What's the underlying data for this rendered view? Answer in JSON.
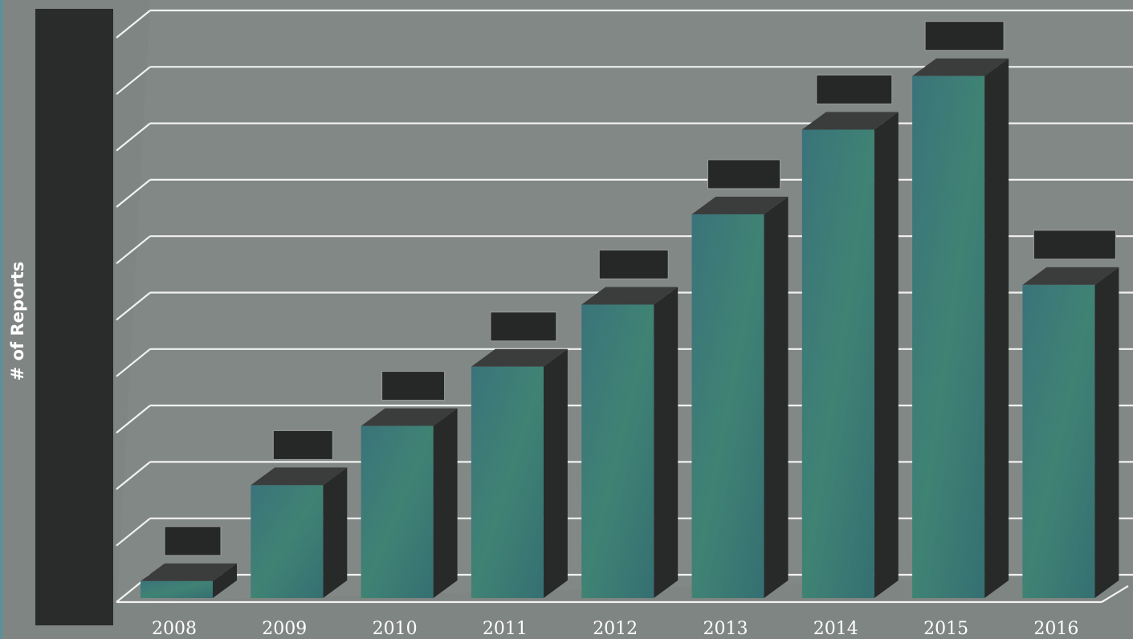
{
  "chart_data": {
    "type": "bar",
    "title": "",
    "xlabel": "",
    "ylabel": "# of Reports",
    "categories": [
      "2008",
      "2009",
      "2010",
      "2011",
      "2012",
      "2013",
      "2014",
      "2015",
      "2016"
    ],
    "values": [
      0.3,
      2.0,
      3.05,
      4.1,
      5.2,
      6.8,
      8.3,
      9.25,
      5.55
    ],
    "ylim": [
      0,
      10.4
    ],
    "grid": true,
    "data_labels_redacted": true,
    "colors": {
      "background": "#7f8582",
      "plot_panel": "#828886",
      "bar_front": "#3f7f76",
      "bar_side": "#282a2a",
      "bar_top": "#3b3d3d",
      "gridline": "#f2f2f2",
      "redaction": "#262727"
    }
  }
}
